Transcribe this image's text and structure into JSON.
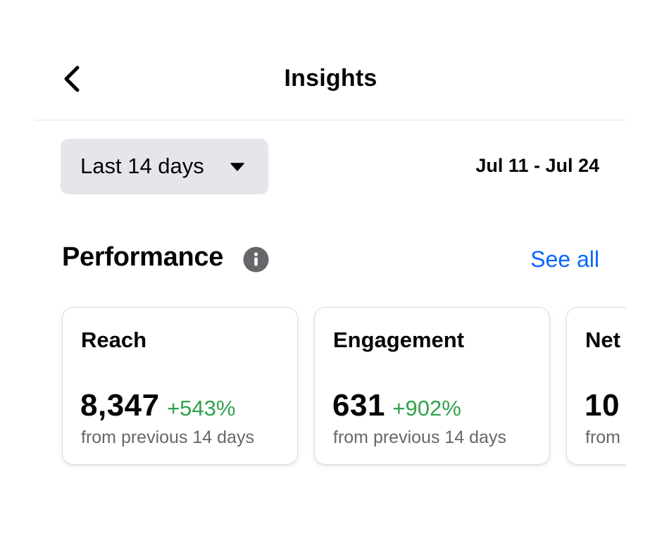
{
  "header": {
    "title": "Insights",
    "back_icon": "chevron-left-icon"
  },
  "filters": {
    "range_label": "Last 14 days",
    "range_caret_icon": "caret-down-icon",
    "date_range": "Jul 11 - Jul 24"
  },
  "performance": {
    "title": "Performance",
    "info_icon": "info-icon",
    "see_all_label": "See all",
    "link_color": "#0866ff",
    "positive_color": "#31a24c",
    "cards": [
      {
        "title": "Reach",
        "value": "8,347",
        "change": "+543%",
        "sub": "from previous 14 days"
      },
      {
        "title": "Engagement",
        "value": "631",
        "change": "+902%",
        "sub": "from previous 14 days"
      },
      {
        "title": "Net",
        "value": "10",
        "change": "",
        "sub": "from"
      }
    ]
  }
}
